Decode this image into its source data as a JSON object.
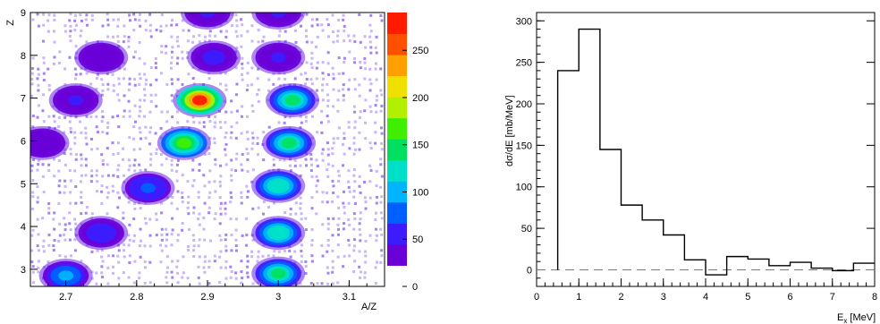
{
  "chart_data": [
    {
      "type": "heatmap",
      "xlabel": "A/Z",
      "ylabel": "Z",
      "xlim": [
        2.65,
        3.15
      ],
      "ylim": [
        2.6,
        9.0
      ],
      "x_ticks": [
        "2.7",
        "2.8",
        "2.9",
        "3",
        "3.1"
      ],
      "y_ticks": [
        "3",
        "4",
        "5",
        "6",
        "7",
        "8",
        "9"
      ],
      "colorbar": {
        "range": [
          0,
          290
        ],
        "ticks": [
          "0",
          "50",
          "100",
          "150",
          "200",
          "250"
        ],
        "colors": [
          "#ffffff",
          "#6a00d8",
          "#3c1cff",
          "#0060ff",
          "#00b4ff",
          "#00e0c8",
          "#00e060",
          "#40ee00",
          "#b0f000",
          "#f0e000",
          "#ffa000",
          "#ff5000",
          "#ff1a00"
        ]
      },
      "clusters": [
        {
          "az": 2.7,
          "z": 2.85,
          "counts": 90
        },
        {
          "az": 2.75,
          "z": 3.85,
          "counts": 55
        },
        {
          "az": 2.816,
          "z": 4.9,
          "counts": 70
        },
        {
          "az": 2.867,
          "z": 5.95,
          "counts": 160
        },
        {
          "az": 2.889,
          "z": 6.95,
          "counts": 280
        },
        {
          "az": 2.909,
          "z": 7.95,
          "counts": 50
        },
        {
          "az": 2.9,
          "z": 9.0,
          "counts": 40
        },
        {
          "az": 2.667,
          "z": 5.95,
          "counts": 35
        },
        {
          "az": 2.714,
          "z": 6.95,
          "counts": 40
        },
        {
          "az": 2.75,
          "z": 7.95,
          "counts": 35
        },
        {
          "az": 3.0,
          "z": 2.9,
          "counts": 140
        },
        {
          "az": 3.0,
          "z": 3.85,
          "counts": 130
        },
        {
          "az": 3.0,
          "z": 4.95,
          "counts": 130
        },
        {
          "az": 3.015,
          "z": 5.95,
          "counts": 150
        },
        {
          "az": 3.02,
          "z": 6.95,
          "counts": 140
        },
        {
          "az": 3.0,
          "z": 7.95,
          "counts": 40
        },
        {
          "az": 3.0,
          "z": 9.0,
          "counts": 40
        }
      ]
    },
    {
      "type": "bar",
      "style": "step-histogram",
      "xlabel": "E",
      "xlabel_sub": "x",
      "xlabel_unit": " [MeV]",
      "ylabel": "dσ/dE [mb/MeV]",
      "xlim": [
        0,
        8
      ],
      "ylim": [
        -20,
        310
      ],
      "x_ticks": [
        "0",
        "1",
        "2",
        "3",
        "4",
        "5",
        "6",
        "7",
        "8"
      ],
      "y_ticks": [
        "0",
        "50",
        "100",
        "150",
        "200",
        "250",
        "300"
      ],
      "bin_edges": [
        0.5,
        1.0,
        1.5,
        2.0,
        2.5,
        3.0,
        3.5,
        4.0,
        4.5,
        5.0,
        5.5,
        6.0,
        6.5,
        7.0,
        7.5,
        8.0
      ],
      "values": [
        240,
        290,
        145,
        78,
        60,
        42,
        12,
        -6,
        16,
        13,
        5,
        9,
        2,
        -1,
        8
      ],
      "baseline": {
        "y": 0,
        "style": "dashed",
        "color": "#e05050"
      }
    }
  ]
}
